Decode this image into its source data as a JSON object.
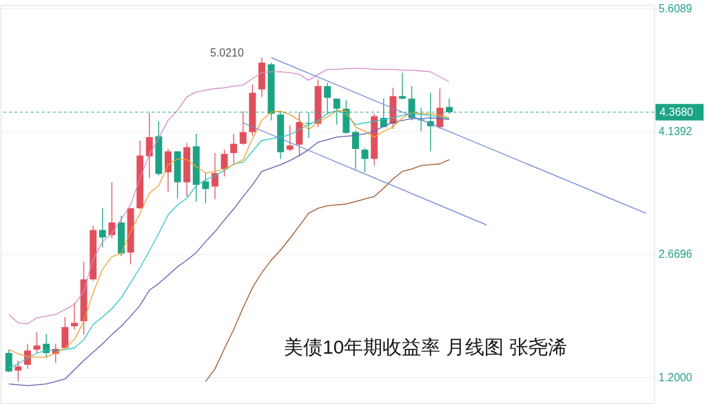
{
  "chart_data": {
    "type": "candlestick",
    "annotations": [
      "美债10年期收益率 月线图 张尧浠",
      "5.0210"
    ],
    "categories": [
      null,
      null,
      null,
      null,
      null,
      null,
      null,
      null,
      null,
      null,
      null,
      null,
      null,
      null,
      null,
      null,
      null,
      null,
      null,
      null,
      null,
      null,
      null,
      null,
      null,
      null,
      null,
      null,
      null,
      null,
      null,
      null,
      null,
      null,
      null,
      null,
      null,
      null,
      null,
      null,
      null,
      null,
      null,
      null,
      null,
      null,
      null,
      null,
      null,
      null,
      null,
      null,
      null,
      null,
      null,
      null,
      null,
      null,
      null,
      null,
      null,
      null,
      null,
      null,
      null,
      null,
      null,
      null,
      null
    ],
    "ohlc": [
      [
        1.49,
        1.53,
        1.26,
        1.27
      ],
      [
        1.28,
        1.4,
        1.15,
        1.33
      ],
      [
        1.35,
        1.6,
        1.3,
        1.52
      ],
      [
        1.53,
        1.74,
        1.49,
        1.58
      ],
      [
        1.6,
        1.72,
        1.44,
        1.49
      ],
      [
        1.48,
        1.6,
        1.37,
        1.54
      ],
      [
        1.55,
        1.92,
        1.54,
        1.8
      ],
      [
        1.81,
        2.09,
        1.77,
        1.85
      ],
      [
        1.87,
        2.58,
        1.71,
        2.37
      ],
      [
        2.37,
        3.01,
        2.35,
        2.96
      ],
      [
        2.96,
        3.22,
        2.75,
        2.87
      ],
      [
        2.9,
        3.53,
        2.86,
        3.05
      ],
      [
        3.05,
        3.13,
        2.65,
        2.68
      ],
      [
        2.69,
        3.22,
        2.55,
        3.22
      ],
      [
        3.22,
        4.03,
        3.21,
        3.85
      ],
      [
        3.84,
        4.36,
        3.58,
        4.07
      ],
      [
        4.08,
        4.26,
        3.61,
        3.63
      ],
      [
        3.65,
        3.93,
        3.42,
        3.9
      ],
      [
        3.9,
        3.9,
        3.34,
        3.53
      ],
      [
        3.53,
        4.0,
        3.36,
        3.95
      ],
      [
        3.96,
        4.11,
        3.3,
        3.5
      ],
      [
        3.54,
        3.64,
        3.28,
        3.45
      ],
      [
        3.48,
        3.88,
        3.33,
        3.64
      ],
      [
        3.69,
        3.92,
        3.6,
        3.87
      ],
      [
        3.88,
        4.11,
        3.76,
        3.99
      ],
      [
        3.99,
        4.38,
        3.98,
        4.13
      ],
      [
        4.13,
        4.7,
        4.09,
        4.6
      ],
      [
        4.64,
        5.021,
        4.55,
        4.96
      ],
      [
        4.94,
        4.96,
        4.27,
        4.35
      ],
      [
        4.34,
        4.38,
        3.81,
        3.89
      ],
      [
        3.92,
        4.21,
        3.9,
        3.97
      ],
      [
        3.98,
        4.37,
        3.84,
        4.25
      ],
      [
        4.24,
        4.37,
        4.06,
        4.23
      ],
      [
        4.23,
        4.76,
        4.19,
        4.68
      ],
      [
        4.68,
        4.72,
        4.34,
        4.54
      ],
      [
        4.53,
        4.53,
        4.22,
        4.41
      ],
      [
        4.41,
        4.51,
        4.11,
        4.12
      ],
      [
        4.13,
        4.15,
        3.69,
        3.93
      ],
      [
        3.92,
        3.94,
        3.65,
        3.81
      ],
      [
        3.81,
        4.35,
        3.73,
        4.32
      ],
      [
        4.3,
        4.53,
        4.19,
        4.19
      ],
      [
        4.23,
        4.66,
        4.17,
        4.56
      ],
      [
        4.56,
        4.84,
        4.52,
        4.53
      ],
      [
        4.53,
        4.68,
        4.27,
        4.3
      ],
      [
        4.28,
        4.42,
        4.14,
        4.27
      ],
      [
        4.26,
        4.6,
        3.9,
        4.2
      ],
      [
        4.19,
        4.65,
        4.17,
        4.42
      ],
      [
        4.43,
        4.53,
        4.35,
        4.368
      ],
      null,
      null,
      null,
      null,
      null,
      null,
      null,
      null,
      null,
      null,
      null,
      null,
      null,
      null,
      null,
      null,
      null,
      null,
      null,
      null,
      null
    ],
    "colors": [
      "#1ba383",
      "#e0505c",
      "#e0505c",
      "#e0505c",
      "#1ba383",
      "#e0505c",
      "#e0505c",
      "#e0505c",
      "#e0505c",
      "#e0505c",
      "#1ba383",
      "#e0505c",
      "#1ba383",
      "#e0505c",
      "#e0505c",
      "#e0505c",
      "#1ba383",
      "#e0505c",
      "#1ba383",
      "#e0505c",
      "#1ba383",
      "#1ba383",
      "#e0505c",
      "#e0505c",
      "#e0505c",
      "#e0505c",
      "#e0505c",
      "#e0505c",
      "#1ba383",
      "#1ba383",
      "#e0505c",
      "#e0505c",
      "#1ba383",
      "#e0505c",
      "#1ba383",
      "#1ba383",
      "#1ba383",
      "#1ba383",
      "#1ba383",
      "#e0505c",
      "#1ba383",
      "#e0505c",
      "#1ba383",
      "#1ba383",
      "#1ba383",
      "#1ba383",
      "#e0505c",
      "#1ba383",
      null,
      null,
      null,
      null,
      null,
      null,
      null,
      null,
      null,
      null,
      null,
      null,
      null,
      null,
      null,
      null,
      null,
      null,
      null,
      null,
      null
    ],
    "series": [
      {
        "type": "line",
        "color": "#d98ac8",
        "values": [
          1.95,
          1.85,
          1.84,
          1.91,
          1.93,
          1.95,
          2.01,
          2.07,
          2.22,
          2.61,
          2.82,
          2.92,
          3.09,
          3.26,
          3.58,
          3.86,
          4.06,
          4.27,
          4.39,
          4.55,
          4.61,
          4.63,
          4.65,
          4.66,
          4.68,
          4.69,
          4.77,
          4.84,
          4.85,
          4.85,
          4.84,
          4.82,
          4.75,
          4.82,
          4.88,
          4.88,
          4.89,
          4.89,
          4.89,
          4.88,
          4.88,
          4.88,
          4.87,
          4.87,
          4.86,
          4.85,
          4.79,
          4.73,
          null,
          null,
          null,
          null,
          null,
          null,
          null,
          null,
          null,
          null,
          null,
          null,
          null,
          null,
          null,
          null,
          null,
          null,
          null,
          null,
          null
        ]
      },
      {
        "type": "line",
        "color": "#a0562c",
        "values": [
          null,
          null,
          null,
          null,
          null,
          null,
          null,
          null,
          null,
          null,
          null,
          null,
          null,
          null,
          null,
          null,
          null,
          null,
          null,
          null,
          null,
          1.15,
          1.3,
          1.54,
          1.77,
          2.03,
          2.27,
          2.45,
          2.6,
          2.72,
          2.86,
          3.01,
          3.16,
          3.22,
          3.25,
          3.26,
          3.27,
          3.3,
          3.33,
          3.36,
          3.46,
          3.57,
          3.66,
          3.69,
          3.73,
          3.74,
          3.75,
          3.8,
          null,
          null,
          null,
          null,
          null,
          null,
          null,
          null,
          null,
          null,
          null,
          null,
          null,
          null,
          null,
          null,
          null,
          null,
          null,
          null,
          null
        ]
      },
      {
        "type": "line",
        "color": "#5b5fb0",
        "values": [
          1.12,
          1.11,
          1.1,
          1.11,
          1.12,
          1.15,
          1.18,
          1.29,
          1.4,
          1.5,
          1.6,
          1.71,
          1.81,
          1.93,
          2.06,
          2.24,
          2.32,
          2.42,
          2.52,
          2.6,
          2.69,
          2.82,
          2.94,
          3.08,
          3.21,
          3.36,
          3.5,
          3.66,
          3.7,
          3.74,
          3.79,
          3.85,
          3.92,
          4.01,
          4.04,
          4.07,
          4.08,
          4.09,
          4.11,
          4.14,
          4.2,
          4.25,
          4.27,
          4.29,
          4.29,
          4.3,
          4.29,
          4.28,
          null,
          null,
          null,
          null,
          null,
          null,
          null,
          null,
          null,
          null,
          null,
          null,
          null,
          null,
          null,
          null,
          null,
          null,
          null,
          null,
          null
        ]
      },
      {
        "type": "line",
        "color": "#2ec4c4",
        "values": [
          1.31,
          1.36,
          1.43,
          1.49,
          1.52,
          1.52,
          1.53,
          1.55,
          1.65,
          1.83,
          1.92,
          2.02,
          2.15,
          2.33,
          2.51,
          2.71,
          2.92,
          3.14,
          3.26,
          3.34,
          3.49,
          3.56,
          3.61,
          3.67,
          3.75,
          3.77,
          3.9,
          4.03,
          4.05,
          4.07,
          4.1,
          4.16,
          4.22,
          4.27,
          4.35,
          4.39,
          4.34,
          4.22,
          4.24,
          4.26,
          4.28,
          4.3,
          4.33,
          4.35,
          4.34,
          4.33,
          4.31,
          4.29,
          null,
          null,
          null,
          null,
          null,
          null,
          null,
          null,
          null,
          null,
          null,
          null,
          null,
          null,
          null,
          null,
          null,
          null,
          null,
          null,
          null
        ]
      },
      {
        "type": "line",
        "color": "#f0a030",
        "values": [
          1.53,
          1.48,
          1.45,
          1.44,
          1.44,
          1.49,
          1.55,
          1.65,
          1.87,
          2.21,
          2.49,
          2.64,
          2.68,
          2.94,
          3.16,
          3.4,
          3.49,
          3.74,
          3.81,
          3.8,
          3.72,
          3.64,
          3.66,
          3.69,
          3.74,
          3.8,
          4.05,
          4.27,
          4.37,
          4.38,
          4.34,
          4.27,
          4.16,
          4.25,
          4.31,
          4.39,
          4.38,
          4.19,
          4.14,
          4.07,
          4.14,
          4.19,
          4.3,
          4.37,
          4.35,
          4.35,
          4.33,
          4.3,
          null,
          null,
          null,
          null,
          null,
          null,
          null,
          null,
          null,
          null,
          null,
          null,
          null,
          null,
          null,
          null,
          null,
          null,
          null,
          null,
          null
        ]
      },
      {
        "type": "line",
        "color": "#6a84d8",
        "values": [
          null,
          null,
          null,
          null,
          null,
          null,
          null,
          null,
          null,
          null,
          null,
          null,
          null,
          null,
          null,
          null,
          null,
          null,
          null,
          null,
          null,
          null,
          null,
          null,
          null,
          null,
          null,
          null,
          5.02,
          null,
          null,
          null,
          null,
          null,
          null,
          null,
          null,
          null,
          null,
          null,
          null,
          null,
          null,
          null,
          null,
          null,
          null,
          null,
          null,
          null,
          null,
          null,
          null,
          null,
          null,
          null,
          null,
          null,
          null,
          null,
          null,
          null,
          null,
          null,
          null,
          null,
          null,
          null,
          3.16
        ]
      },
      {
        "type": "line",
        "color": "#6a84d8",
        "values": [
          null,
          null,
          null,
          null,
          null,
          null,
          null,
          null,
          null,
          null,
          null,
          null,
          null,
          null,
          null,
          null,
          null,
          null,
          null,
          null,
          null,
          null,
          null,
          null,
          null,
          4.24,
          null,
          null,
          null,
          null,
          null,
          null,
          null,
          null,
          null,
          null,
          null,
          null,
          null,
          null,
          null,
          null,
          null,
          null,
          null,
          null,
          null,
          null,
          null,
          null,
          null,
          3.02,
          null,
          null,
          null,
          null,
          null,
          null,
          null,
          null,
          null,
          null,
          null,
          null,
          null,
          null,
          null,
          null,
          null
        ]
      }
    ],
    "ylim": [
      0.89,
      5.65
    ],
    "yticks": [
      5.6089,
      4.1392,
      2.6696,
      {
        "value": 1.2,
        "label": "1.2000"
      }
    ],
    "tick_labels": "y",
    "grid": "y",
    "ref_lines": [
      {
        "axis": "y",
        "value": 4.368,
        "label": "4.3680",
        "color": "#1ba383",
        "line_style": "dashed"
      }
    ]
  }
}
